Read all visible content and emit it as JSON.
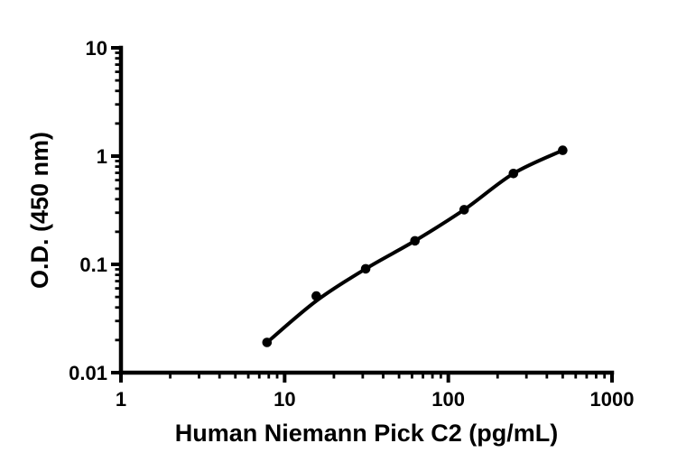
{
  "figure": {
    "background_color": "#ffffff",
    "accent_color": "#000000"
  },
  "chart_data": {
    "type": "scatter",
    "title": "",
    "xlabel": "Human Niemann Pick C2 (pg/mL)",
    "ylabel": "O.D. (450 nm)",
    "xscale": "log",
    "yscale": "log",
    "xlim": [
      1,
      1000
    ],
    "ylim": [
      0.01,
      10
    ],
    "grid": false,
    "legend": null,
    "axis_color": "#000000",
    "marker_color": "#000000",
    "line_color": "#000000",
    "x_ticks": [
      {
        "value": 1,
        "label": "1"
      },
      {
        "value": 10,
        "label": "10"
      },
      {
        "value": 100,
        "label": "100"
      },
      {
        "value": 1000,
        "label": "1000"
      }
    ],
    "y_ticks": [
      {
        "value": 10,
        "label": "10"
      },
      {
        "value": 1,
        "label": "1"
      },
      {
        "value": 0.1,
        "label": "0.1"
      },
      {
        "value": 0.01,
        "label": "0.01"
      }
    ],
    "series": [
      {
        "x": [
          7.8,
          15.6,
          31.25,
          62.5,
          125,
          250,
          500
        ],
        "od": [
          0.019,
          0.051,
          0.091,
          0.165,
          0.32,
          0.69,
          1.13
        ]
      }
    ],
    "fit_line": {
      "x": [
        7.8,
        15.6,
        31.25,
        62.5,
        125,
        250,
        500
      ],
      "od": [
        0.019,
        0.046,
        0.091,
        0.165,
        0.32,
        0.69,
        1.13
      ]
    }
  }
}
